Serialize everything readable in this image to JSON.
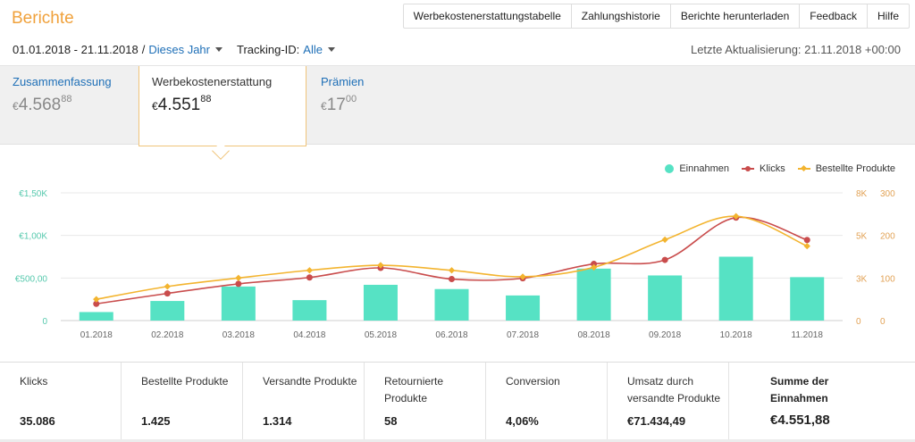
{
  "header": {
    "title": "Berichte",
    "nav": [
      "Werbekostenerstattungstabelle",
      "Zahlungshistorie",
      "Berichte herunterladen",
      "Feedback",
      "Hilfe"
    ]
  },
  "filters": {
    "date_range": "01.01.2018 - 21.11.2018",
    "separator": "/",
    "period": "Dieses Jahr",
    "tracking_label": "Tracking-ID:",
    "tracking_value": "Alle",
    "last_update": "Letzte Aktualisierung: 21.11.2018 +00:00"
  },
  "tabs": [
    {
      "label": "Zusammenfassung",
      "currency": "€",
      "main": "4.568",
      "cents": "88"
    },
    {
      "label": "Werbekostenerstattung",
      "currency": "€",
      "main": "4.551",
      "cents": "88",
      "active": true
    },
    {
      "label": "Prämien",
      "currency": "€",
      "main": "17",
      "cents": "00"
    }
  ],
  "legend": {
    "revenue": "Einnahmen",
    "clicks": "Klicks",
    "ordered": "Bestellte Produkte"
  },
  "chart_data": {
    "type": "bar",
    "categories": [
      "01.2018",
      "02.2018",
      "03.2018",
      "04.2018",
      "05.2018",
      "06.2018",
      "07.2018",
      "08.2018",
      "09.2018",
      "10.2018",
      "11.2018"
    ],
    "series": [
      {
        "name": "Einnahmen",
        "type": "bar",
        "axis": "left",
        "values": [
          100,
          230,
          400,
          240,
          420,
          370,
          295,
          610,
          530,
          750,
          510
        ]
      },
      {
        "name": "Klicks",
        "type": "line",
        "axis": "right1",
        "values": [
          1050,
          1700,
          2300,
          2700,
          3300,
          2600,
          2650,
          3550,
          3800,
          6450,
          5050
        ]
      },
      {
        "name": "Bestellte Produkte",
        "type": "line",
        "axis": "right2",
        "values": [
          50,
          80,
          100,
          118,
          130,
          118,
          103,
          125,
          190,
          245,
          175
        ]
      }
    ],
    "y_left": {
      "ticks": [
        "0",
        "€500,00",
        "€1,00K",
        "€1,50K"
      ],
      "range": [
        0,
        1500
      ]
    },
    "y_right1": {
      "ticks": [
        "0",
        "3K",
        "5K",
        "8K"
      ],
      "range": [
        0,
        8000
      ]
    },
    "y_right2": {
      "ticks": [
        "0",
        "100",
        "200",
        "300"
      ],
      "range": [
        0,
        300
      ]
    },
    "colors": {
      "bar": "#56e2c4",
      "clicks": "#c94c4c",
      "ordered": "#f3b42f",
      "axis_left": "#56c9ad",
      "axis_right": "#e2a255"
    },
    "grid": true,
    "legend_position": "top-right"
  },
  "stats": [
    {
      "label": "Klicks",
      "value": "35.086"
    },
    {
      "label": "Bestellte Produkte",
      "value": "1.425"
    },
    {
      "label": "Versandte Produkte",
      "value": "1.314"
    },
    {
      "label": "Retournierte Produkte",
      "value": "58"
    },
    {
      "label": "Conversion",
      "value": "4,06%"
    },
    {
      "label": "Umsatz durch versandte Produkte",
      "value": "€71.434,49"
    },
    {
      "label": "Summe der Einnahmen",
      "value": "€4.551,88"
    }
  ]
}
